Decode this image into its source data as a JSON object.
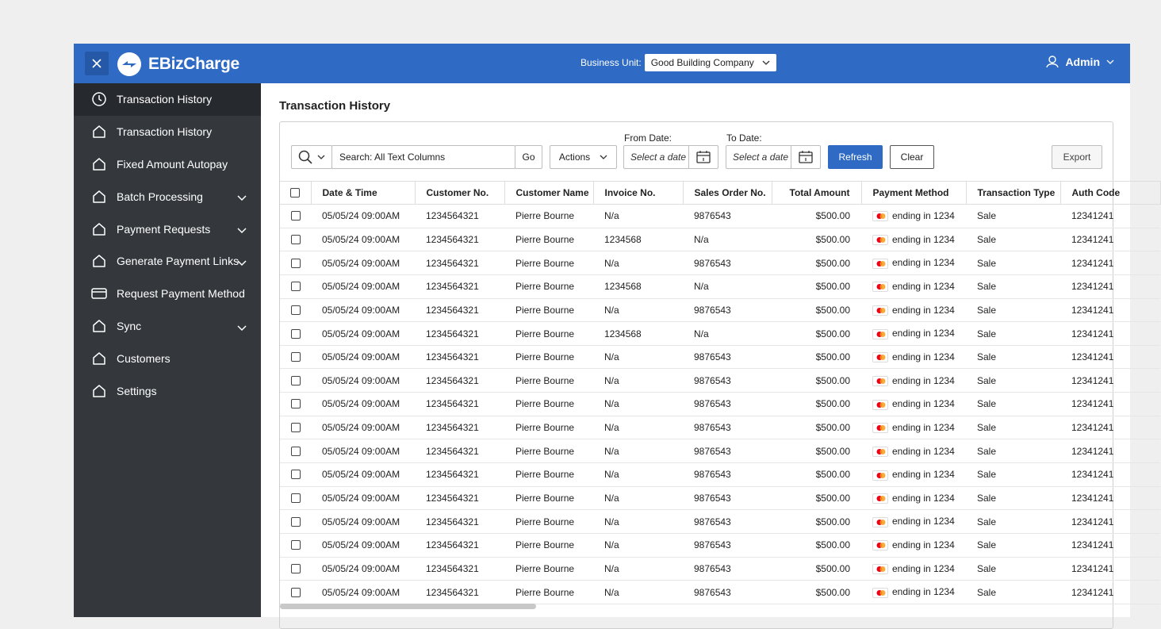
{
  "header": {
    "logo": "EBizCharge",
    "business_unit_label": "Business Unit:",
    "business_unit": "Good Building Company",
    "user": "Admin"
  },
  "sidebar": {
    "items": [
      {
        "label": "Transaction History",
        "icon": "clock",
        "expandable": false,
        "active": true
      },
      {
        "label": "Transaction History",
        "icon": "home",
        "expandable": false,
        "active": false
      },
      {
        "label": "Fixed Amount Autopay",
        "icon": "home",
        "expandable": false,
        "active": false
      },
      {
        "label": "Batch Processing",
        "icon": "home",
        "expandable": true,
        "active": false
      },
      {
        "label": "Payment Requests",
        "icon": "home",
        "expandable": true,
        "active": false
      },
      {
        "label": "Generate Payment Links",
        "icon": "home",
        "expandable": true,
        "active": false
      },
      {
        "label": "Request Payment Method",
        "icon": "card",
        "expandable": false,
        "active": false
      },
      {
        "label": "Sync",
        "icon": "home",
        "expandable": true,
        "active": false
      },
      {
        "label": "Customers",
        "icon": "home",
        "expandable": false,
        "active": false
      },
      {
        "label": "Settings",
        "icon": "home",
        "expandable": false,
        "active": false
      }
    ]
  },
  "page": {
    "title": "Transaction History"
  },
  "toolbar": {
    "search_placeholder": "Search: All Text Columns",
    "go": "Go",
    "actions": "Actions",
    "from_date_label": "From Date:",
    "from_date_placeholder": "Select a date",
    "to_date_label": "To Date:",
    "to_date_placeholder": "Select a date",
    "refresh": "Refresh",
    "clear": "Clear",
    "export": "Export"
  },
  "table": {
    "columns": [
      "Date & Time",
      "Customer No.",
      "Customer Name",
      "Invoice No.",
      "Sales Order No.",
      "Total Amount",
      "Payment Method",
      "Transaction Type",
      "Auth Code"
    ],
    "rows": [
      [
        "05/05/24 09:00AM",
        "1234564321",
        "Pierre Bourne",
        "N/a",
        "9876543",
        "$500.00",
        "ending in 1234",
        "Sale",
        "12341241"
      ],
      [
        "05/05/24 09:00AM",
        "1234564321",
        "Pierre Bourne",
        "1234568",
        "N/a",
        "$500.00",
        "ending in 1234",
        "Sale",
        "12341241"
      ],
      [
        "05/05/24 09:00AM",
        "1234564321",
        "Pierre Bourne",
        "N/a",
        "9876543",
        "$500.00",
        "ending in 1234",
        "Sale",
        "12341241"
      ],
      [
        "05/05/24 09:00AM",
        "1234564321",
        "Pierre Bourne",
        "1234568",
        "N/a",
        "$500.00",
        "ending in 1234",
        "Sale",
        "12341241"
      ],
      [
        "05/05/24 09:00AM",
        "1234564321",
        "Pierre Bourne",
        "N/a",
        "9876543",
        "$500.00",
        "ending in 1234",
        "Sale",
        "12341241"
      ],
      [
        "05/05/24 09:00AM",
        "1234564321",
        "Pierre Bourne",
        "1234568",
        "N/a",
        "$500.00",
        "ending in 1234",
        "Sale",
        "12341241"
      ],
      [
        "05/05/24 09:00AM",
        "1234564321",
        "Pierre Bourne",
        "N/a",
        "9876543",
        "$500.00",
        "ending in 1234",
        "Sale",
        "12341241"
      ],
      [
        "05/05/24 09:00AM",
        "1234564321",
        "Pierre Bourne",
        "N/a",
        "9876543",
        "$500.00",
        "ending in 1234",
        "Sale",
        "12341241"
      ],
      [
        "05/05/24 09:00AM",
        "1234564321",
        "Pierre Bourne",
        "N/a",
        "9876543",
        "$500.00",
        "ending in 1234",
        "Sale",
        "12341241"
      ],
      [
        "05/05/24 09:00AM",
        "1234564321",
        "Pierre Bourne",
        "N/a",
        "9876543",
        "$500.00",
        "ending in 1234",
        "Sale",
        "12341241"
      ],
      [
        "05/05/24 09:00AM",
        "1234564321",
        "Pierre Bourne",
        "N/a",
        "9876543",
        "$500.00",
        "ending in 1234",
        "Sale",
        "12341241"
      ],
      [
        "05/05/24 09:00AM",
        "1234564321",
        "Pierre Bourne",
        "N/a",
        "9876543",
        "$500.00",
        "ending in 1234",
        "Sale",
        "12341241"
      ],
      [
        "05/05/24 09:00AM",
        "1234564321",
        "Pierre Bourne",
        "N/a",
        "9876543",
        "$500.00",
        "ending in 1234",
        "Sale",
        "12341241"
      ],
      [
        "05/05/24 09:00AM",
        "1234564321",
        "Pierre Bourne",
        "N/a",
        "9876543",
        "$500.00",
        "ending in 1234",
        "Sale",
        "12341241"
      ],
      [
        "05/05/24 09:00AM",
        "1234564321",
        "Pierre Bourne",
        "N/a",
        "9876543",
        "$500.00",
        "ending in 1234",
        "Sale",
        "12341241"
      ],
      [
        "05/05/24 09:00AM",
        "1234564321",
        "Pierre Bourne",
        "N/a",
        "9876543",
        "$500.00",
        "ending in 1234",
        "Sale",
        "12341241"
      ],
      [
        "05/05/24 09:00AM",
        "1234564321",
        "Pierre Bourne",
        "N/a",
        "9876543",
        "$500.00",
        "ending in 1234",
        "Sale",
        "12341241"
      ]
    ]
  }
}
